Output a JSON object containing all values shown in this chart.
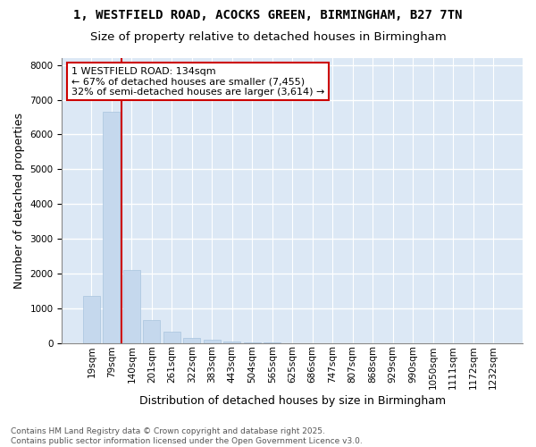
{
  "title1": "1, WESTFIELD ROAD, ACOCKS GREEN, BIRMINGHAM, B27 7TN",
  "title2": "Size of property relative to detached houses in Birmingham",
  "xlabel": "Distribution of detached houses by size in Birmingham",
  "ylabel": "Number of detached properties",
  "categories": [
    "19sqm",
    "79sqm",
    "140sqm",
    "201sqm",
    "261sqm",
    "322sqm",
    "383sqm",
    "443sqm",
    "504sqm",
    "565sqm",
    "625sqm",
    "686sqm",
    "747sqm",
    "807sqm",
    "868sqm",
    "929sqm",
    "990sqm",
    "1050sqm",
    "1111sqm",
    "1172sqm",
    "1232sqm"
  ],
  "values": [
    1350,
    6650,
    2100,
    650,
    320,
    155,
    100,
    50,
    15,
    10,
    0,
    0,
    0,
    0,
    0,
    0,
    0,
    0,
    0,
    0,
    0
  ],
  "bar_color": "#c5d8ed",
  "bar_edge_color": "#a8c4de",
  "vline_x_index": 2,
  "vline_color": "#cc0000",
  "annotation_line1": "1 WESTFIELD ROAD: 134sqm",
  "annotation_line2": "← 67% of detached houses are smaller (7,455)",
  "annotation_line3": "32% of semi-detached houses are larger (3,614) →",
  "annotation_box_edgecolor": "#cc0000",
  "ylim": [
    0,
    8200
  ],
  "yticks": [
    0,
    1000,
    2000,
    3000,
    4000,
    5000,
    6000,
    7000,
    8000
  ],
  "plot_bg_color": "#dce8f5",
  "grid_color": "#ffffff",
  "fig_bg_color": "#ffffff",
  "footer_text": "Contains HM Land Registry data © Crown copyright and database right 2025.\nContains public sector information licensed under the Open Government Licence v3.0.",
  "title1_fontsize": 10,
  "title2_fontsize": 9.5,
  "axis_label_fontsize": 9,
  "tick_fontsize": 7.5,
  "annotation_fontsize": 8,
  "footer_fontsize": 6.5
}
